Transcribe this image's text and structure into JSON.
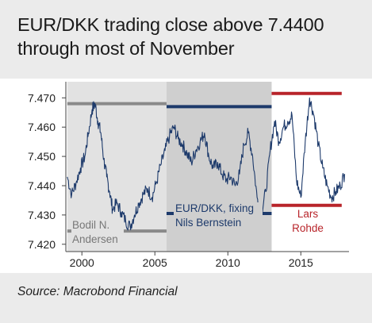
{
  "title": "EUR/DKK trading close above 7.4400 through most of November",
  "source": "Source: Macrobond Financial",
  "colors": {
    "line": "#1d3a6b",
    "band_hline": "#1d3a6b",
    "gray_hline": "#8a8a8a",
    "red_hline": "#b8242a",
    "shade_dark": "#cfcfcf",
    "shade_light": "#e2e2e2",
    "background": "#ffffff",
    "header_bg": "#ebebeb",
    "gray_text": "#777777",
    "blue_text": "#1d3a6b",
    "red_text": "#b8242a"
  },
  "chart_data": {
    "type": "line",
    "title": "EUR/DKK trading close above 7.4400 through most of November",
    "series": [
      {
        "name": "EUR/DKK",
        "points": [
          [
            1999.0,
            7.443
          ],
          [
            1999.3,
            7.437
          ],
          [
            1999.6,
            7.441
          ],
          [
            1999.9,
            7.446
          ],
          [
            2000.2,
            7.45
          ],
          [
            2000.45,
            7.458
          ],
          [
            2000.7,
            7.466
          ],
          [
            2000.9,
            7.468
          ],
          [
            2001.1,
            7.462
          ],
          [
            2001.3,
            7.458
          ],
          [
            2001.5,
            7.449
          ],
          [
            2001.7,
            7.443
          ],
          [
            2001.9,
            7.438
          ],
          [
            2002.1,
            7.432
          ],
          [
            2002.4,
            7.434
          ],
          [
            2002.7,
            7.431
          ],
          [
            2003.0,
            7.428
          ],
          [
            2003.3,
            7.426
          ],
          [
            2003.6,
            7.43
          ],
          [
            2003.9,
            7.434
          ],
          [
            2004.2,
            7.437
          ],
          [
            2004.5,
            7.439
          ],
          [
            2004.8,
            7.436
          ],
          [
            2005.1,
            7.441
          ],
          [
            2005.4,
            7.447
          ],
          [
            2005.7,
            7.452
          ],
          [
            2006.0,
            7.457
          ],
          [
            2006.3,
            7.46
          ],
          [
            2006.6,
            7.456
          ],
          [
            2006.9,
            7.454
          ],
          [
            2007.2,
            7.451
          ],
          [
            2007.5,
            7.448
          ],
          [
            2007.8,
            7.452
          ],
          [
            2008.1,
            7.455
          ],
          [
            2008.4,
            7.458
          ],
          [
            2008.7,
            7.45
          ],
          [
            2009.0,
            7.446
          ],
          [
            2009.3,
            7.448
          ],
          [
            2009.6,
            7.444
          ],
          [
            2009.9,
            7.442
          ],
          [
            2010.2,
            7.443
          ],
          [
            2010.5,
            7.44
          ],
          [
            2010.8,
            7.444
          ],
          [
            2011.1,
            7.454
          ],
          [
            2011.4,
            7.458
          ],
          [
            2011.7,
            7.45
          ],
          [
            2012.0,
            7.436
          ],
          [
            2012.3,
            7.431
          ],
          [
            2012.6,
            7.438
          ],
          [
            2012.9,
            7.452
          ],
          [
            2013.2,
            7.462
          ],
          [
            2013.5,
            7.455
          ],
          [
            2013.8,
            7.46
          ],
          [
            2014.1,
            7.462
          ],
          [
            2014.4,
            7.464
          ],
          [
            2014.7,
            7.442
          ],
          [
            2015.0,
            7.436
          ],
          [
            2015.3,
            7.455
          ],
          [
            2015.6,
            7.47
          ],
          [
            2015.9,
            7.464
          ],
          [
            2016.2,
            7.454
          ],
          [
            2016.5,
            7.446
          ],
          [
            2016.8,
            7.44
          ],
          [
            2017.1,
            7.436
          ],
          [
            2017.4,
            7.438
          ],
          [
            2017.7,
            7.44
          ],
          [
            2018.0,
            7.444
          ]
        ]
      }
    ],
    "x_ticks": [
      "2000",
      "2005",
      "2010",
      "2015"
    ],
    "y_ticks": [
      "7.470",
      "7.460",
      "7.450",
      "7.440",
      "7.430",
      "7.420"
    ],
    "xlim": [
      1998.9,
      2018.3
    ],
    "ylim": [
      7.4175,
      7.4755
    ],
    "periods": [
      {
        "name": "Bodil N. Andersen",
        "start": 1999.0,
        "end": 2005.8,
        "level": 7.4245,
        "upper_level": 7.468
      },
      {
        "name": "EUR/DKK, fixing Nils Bernstein",
        "start": 2005.8,
        "end": 2013.0,
        "level": 7.4305,
        "upper_level": 7.467
      },
      {
        "name": "Lars Rohde",
        "start": 2013.0,
        "end": 2018.3,
        "level": 7.4333,
        "upper_level": 7.4715
      }
    ],
    "annotations": {
      "bodil": [
        "Bodil N.",
        "Andersen"
      ],
      "bernstein": [
        "EUR/DKK, fixing",
        "Nils Bernstein"
      ],
      "rohde": [
        "Lars",
        "Rohde"
      ]
    },
    "grid": false,
    "legend": "none"
  }
}
